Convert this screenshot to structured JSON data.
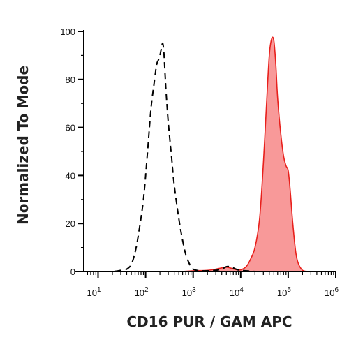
{
  "chart_data": {
    "type": "area",
    "title": "",
    "xlabel": "CD16 PUR / GAM APC",
    "ylabel": "Normalized To Mode",
    "x_scale": "log",
    "xlim": [
      5,
      1000000
    ],
    "ylim": [
      0,
      100
    ],
    "x_ticks": [
      {
        "value": 10,
        "base": "10",
        "exp": "1"
      },
      {
        "value": 100,
        "base": "10",
        "exp": "2"
      },
      {
        "value": 1000,
        "base": "10",
        "exp": "3"
      },
      {
        "value": 10000,
        "base": "10",
        "exp": "4"
      },
      {
        "value": 100000,
        "base": "10",
        "exp": "5"
      },
      {
        "value": 1000000,
        "base": "10",
        "exp": "6"
      }
    ],
    "y_ticks": [
      0,
      20,
      40,
      60,
      80,
      100
    ],
    "grid": false,
    "legend": "none",
    "series": [
      {
        "style": "dashed",
        "fill": "none",
        "color": "#000000",
        "x": [
          5,
          10,
          20,
          30,
          40,
          50,
          60,
          70,
          90,
          110,
          130,
          150,
          170,
          185,
          200,
          215,
          230,
          245,
          260,
          280,
          300,
          350,
          400,
          500,
          600,
          700,
          800,
          900,
          1000,
          1200,
          1500,
          2000,
          3000,
          4000,
          5000,
          6000,
          7000,
          8000,
          10000,
          20000
        ],
        "y": [
          0,
          0,
          0,
          0.5,
          1,
          3,
          8,
          15,
          30,
          50,
          68,
          78,
          86,
          88,
          90,
          93,
          95,
          90,
          80,
          70,
          62,
          48,
          36,
          22,
          13,
          7,
          4,
          2,
          1,
          0.5,
          0.3,
          0.3,
          0.5,
          1,
          2,
          2,
          1.5,
          1,
          0.5,
          0
        ]
      },
      {
        "style": "solid",
        "fill": "#f89999",
        "color": "#e8201c",
        "x": [
          5,
          100,
          500,
          1000,
          2000,
          3000,
          4000,
          5000,
          6000,
          8000,
          10000,
          13000,
          16000,
          20000,
          25000,
          30000,
          35000,
          40000,
          45000,
          50000,
          55000,
          60000,
          70000,
          80000,
          90000,
          100000,
          110000,
          125000,
          150000,
          200000,
          300000,
          1000000
        ],
        "y": [
          0,
          0,
          0,
          0.3,
          0.5,
          1,
          1.5,
          1.8,
          1.5,
          0.8,
          0.7,
          2,
          5,
          10,
          22,
          45,
          70,
          90,
          97,
          96,
          86,
          72,
          57,
          48,
          44,
          42,
          34,
          20,
          6,
          0.5,
          0,
          0
        ]
      }
    ]
  }
}
